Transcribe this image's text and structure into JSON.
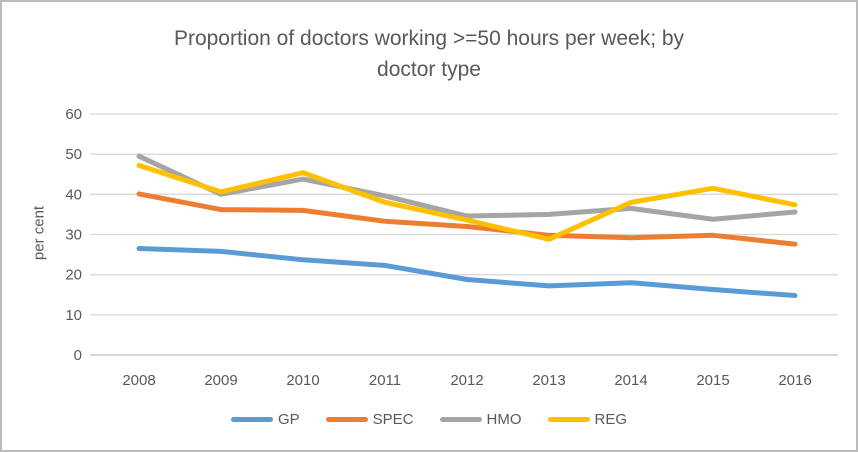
{
  "chart_data": {
    "type": "line",
    "title": "Proportion of doctors working >=50 hours per week; by\ndoctor type",
    "xlabel": "",
    "ylabel": "per cent",
    "categories": [
      "2008",
      "2009",
      "2010",
      "2011",
      "2012",
      "2013",
      "2014",
      "2015",
      "2016"
    ],
    "series": [
      {
        "name": "GP",
        "color": "#5B9BD5",
        "values": [
          26.5,
          25.8,
          23.7,
          22.3,
          18.8,
          17.2,
          18.0,
          16.3,
          14.8
        ]
      },
      {
        "name": "SPEC",
        "color": "#ED7D31",
        "values": [
          40.1,
          36.2,
          36.0,
          33.3,
          32.0,
          29.8,
          29.2,
          29.8,
          27.6
        ]
      },
      {
        "name": "HMO",
        "color": "#A5A5A5",
        "values": [
          49.5,
          40.0,
          43.8,
          39.6,
          34.6,
          35.0,
          36.5,
          33.8,
          35.6
        ]
      },
      {
        "name": "REG",
        "color": "#FFC000",
        "values": [
          47.2,
          40.6,
          45.4,
          38.0,
          33.6,
          28.8,
          38.0,
          41.5,
          37.4
        ]
      }
    ],
    "ylim": [
      0,
      60
    ],
    "yticks": [
      0,
      10,
      20,
      30,
      40,
      50,
      60
    ],
    "grid": "horizontal",
    "gridline_color": "#D9D9D9",
    "axis_line_color": "#BFBFBF",
    "text_color": "#595959",
    "legend_position": "bottom"
  }
}
